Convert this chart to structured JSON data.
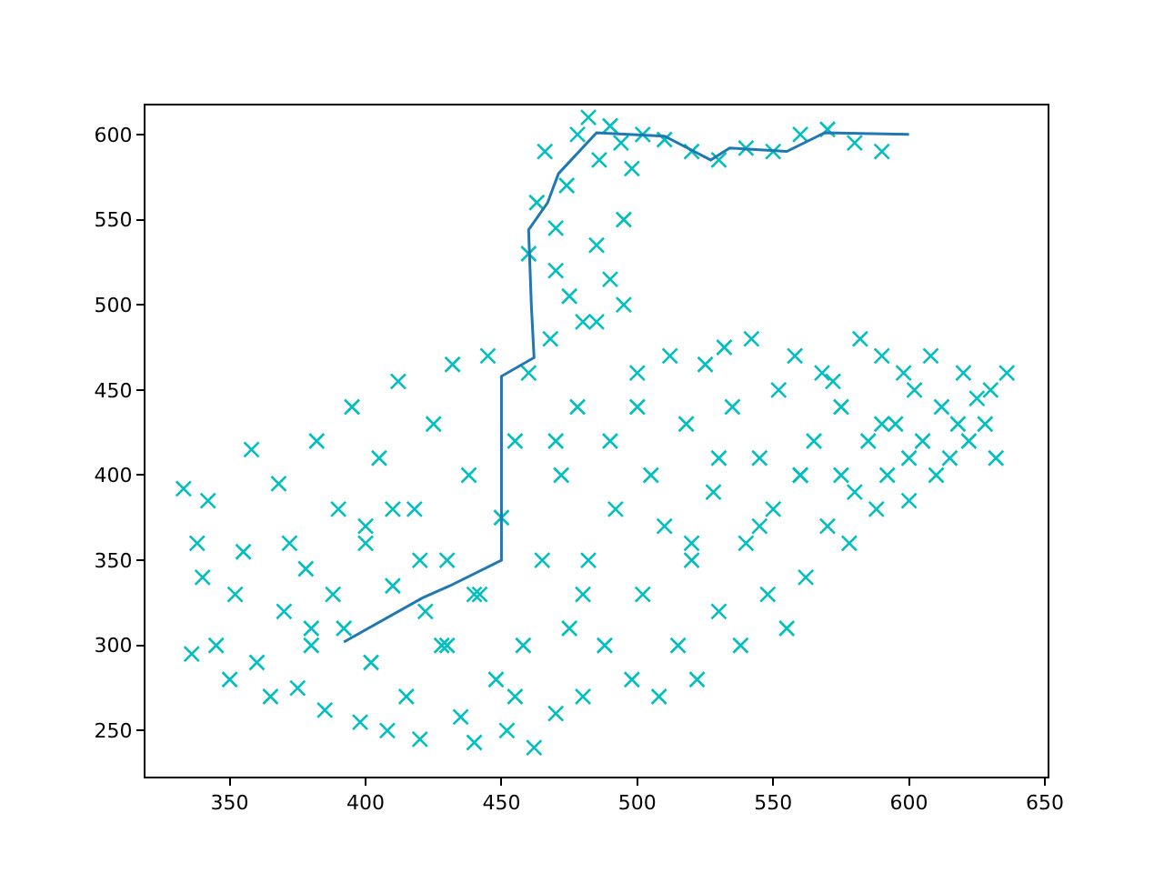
{
  "chart_data": {
    "type": "scatter",
    "xlim": [
      319,
      651
    ],
    "ylim": [
      223,
      617
    ],
    "xticks": [
      350,
      400,
      450,
      500,
      550,
      600,
      650
    ],
    "yticks": [
      250,
      300,
      350,
      400,
      450,
      500,
      550,
      600
    ],
    "series": [
      {
        "marker": "cross",
        "color": "#00bfbf",
        "x": [
          333,
          336,
          338,
          340,
          342,
          345,
          350,
          352,
          355,
          358,
          360,
          365,
          368,
          370,
          372,
          375,
          378,
          380,
          382,
          385,
          388,
          390,
          392,
          395,
          398,
          400,
          402,
          405,
          408,
          410,
          412,
          415,
          418,
          420,
          422,
          425,
          428,
          430,
          432,
          435,
          438,
          440,
          442,
          445,
          448,
          450,
          452,
          455,
          458,
          460,
          462,
          465,
          468,
          470,
          472,
          475,
          478,
          480,
          482,
          485,
          488,
          490,
          492,
          495,
          498,
          500,
          502,
          505,
          508,
          510,
          512,
          515,
          518,
          520,
          522,
          525,
          528,
          530,
          532,
          535,
          538,
          540,
          542,
          545,
          548,
          550,
          552,
          555,
          558,
          560,
          562,
          565,
          568,
          570,
          572,
          575,
          578,
          580,
          582,
          585,
          588,
          590,
          592,
          595,
          598,
          600,
          602,
          605,
          608,
          610,
          612,
          615,
          618,
          620,
          622,
          625,
          628,
          630,
          632,
          636,
          460,
          463,
          466,
          470,
          474,
          478,
          482,
          486,
          490,
          494,
          498,
          502,
          510,
          520,
          530,
          540,
          550,
          560,
          570,
          580,
          590,
          470,
          475,
          480,
          485,
          490,
          495,
          400,
          420,
          440,
          470,
          500,
          530,
          560,
          590,
          380,
          410,
          430,
          455,
          480,
          520,
          545,
          575,
          600
        ],
        "values": [
          392,
          295,
          360,
          340,
          385,
          300,
          280,
          330,
          355,
          415,
          290,
          270,
          395,
          320,
          360,
          275,
          345,
          300,
          420,
          262,
          330,
          380,
          310,
          440,
          255,
          360,
          290,
          410,
          250,
          335,
          455,
          270,
          380,
          245,
          320,
          430,
          300,
          350,
          465,
          258,
          400,
          243,
          330,
          470,
          280,
          375,
          250,
          420,
          300,
          460,
          240,
          350,
          480,
          260,
          400,
          310,
          440,
          270,
          350,
          490,
          300,
          420,
          380,
          550,
          280,
          460,
          330,
          400,
          270,
          370,
          470,
          300,
          430,
          350,
          280,
          465,
          390,
          320,
          475,
          440,
          300,
          360,
          480,
          410,
          330,
          380,
          450,
          310,
          470,
          400,
          340,
          420,
          460,
          370,
          455,
          440,
          360,
          390,
          480,
          420,
          380,
          470,
          400,
          430,
          460,
          385,
          450,
          420,
          470,
          400,
          440,
          410,
          430,
          460,
          420,
          445,
          430,
          450,
          410,
          460,
          530,
          560,
          590,
          545,
          570,
          600,
          610,
          585,
          605,
          595,
          580,
          600,
          597,
          590,
          585,
          592,
          590,
          600,
          603,
          595,
          590,
          520,
          505,
          490,
          535,
          515,
          500,
          370,
          350,
          330,
          420,
          440,
          410,
          400,
          430,
          310,
          380,
          300,
          270,
          330,
          360,
          370,
          400,
          410
        ]
      },
      {
        "type": "line",
        "color": "#1f77b4",
        "x": [
          392,
          421,
          431,
          450,
          450,
          450,
          462,
          461,
          460,
          467,
          471,
          485,
          510,
          527,
          534,
          555,
          569,
          600
        ],
        "values": [
          302,
          328,
          335,
          350,
          440,
          458,
          469,
          500,
          544,
          560,
          577,
          601,
          599,
          585,
          592,
          590,
          601,
          600
        ]
      }
    ]
  }
}
